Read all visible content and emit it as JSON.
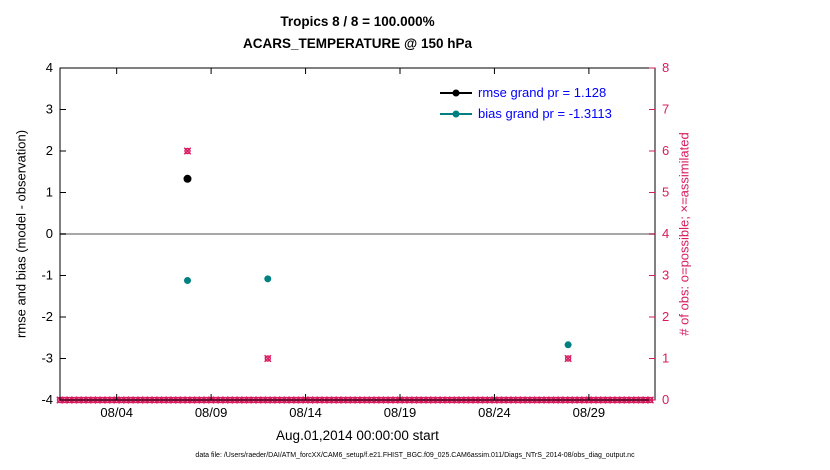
{
  "caption": "data file: /Users/raeder/DAI/ATM_forcXX/CAM6_setup/f.e21.FHIST_BGC.f09_025.CAM6assim.011/Diags_NTrS_2014-08/obs_diag_output.nc",
  "colors": {
    "pink": "#d81b60",
    "teal": "#008080",
    "legend_blue": "#0000ff",
    "zero_line": "#a8a8a8",
    "axis": "#000000",
    "background": "#ffffff"
  },
  "chart_data": {
    "type": "scatter",
    "title": "Tropics 8 / 8 = 100.000%",
    "subtitle": "ACARS_TEMPERATURE @ 150 hPa",
    "xlabel": "Aug.01,2014 00:00:00 start",
    "ylabel_left": "rmse and bias (model - observation)",
    "ylabel_right": "# of obs: o=possible; ×=assimilated",
    "x_start_day": 0,
    "x_end_day": 31.5,
    "xticks": [
      {
        "day": 3,
        "label": "08/04"
      },
      {
        "day": 8,
        "label": "08/09"
      },
      {
        "day": 13,
        "label": "08/14"
      },
      {
        "day": 18,
        "label": "08/19"
      },
      {
        "day": 23,
        "label": "08/24"
      },
      {
        "day": 28,
        "label": "08/29"
      }
    ],
    "ylim_left": [
      -4,
      4
    ],
    "yticks_left": [
      -4,
      -3,
      -2,
      -1,
      0,
      1,
      2,
      3,
      4
    ],
    "ylim_right": [
      0,
      8
    ],
    "yticks_right": [
      0,
      1,
      2,
      3,
      4,
      5,
      6,
      7,
      8
    ],
    "zero_line_value": 0,
    "grid": "off",
    "legend_position": "top-right-inside",
    "series": [
      {
        "name": "rmse",
        "axis": "left",
        "marker": "filled-dot",
        "color": "#000000",
        "points": [
          {
            "day": 6.75,
            "value": 1.33
          }
        ]
      },
      {
        "name": "bias",
        "axis": "left",
        "marker": "filled-dot",
        "color": "#008080",
        "points": [
          {
            "day": 6.75,
            "value": -1.12
          },
          {
            "day": 11,
            "value": -1.08
          },
          {
            "day": 26.9,
            "value": -2.67
          }
        ]
      },
      {
        "name": "num_obs",
        "axis": "right",
        "marker": "circle-plus-cross",
        "color": "#d81b60",
        "points": [
          {
            "day": 6.75,
            "value": 6
          },
          {
            "day": 11,
            "value": 1
          },
          {
            "day": 26.9,
            "value": 1
          }
        ]
      }
    ],
    "obs_baseline": {
      "axis": "right",
      "value": 0,
      "start_day": 0,
      "end_day": 31.25,
      "step_day": 0.25,
      "color": "#d81b60"
    },
    "legend": [
      {
        "label": "rmse grand pr = 1.128",
        "color": "#000000"
      },
      {
        "label": "bias grand pr = -1.3113",
        "color": "#008080"
      }
    ],
    "legend_text_color": "#0000ff"
  }
}
